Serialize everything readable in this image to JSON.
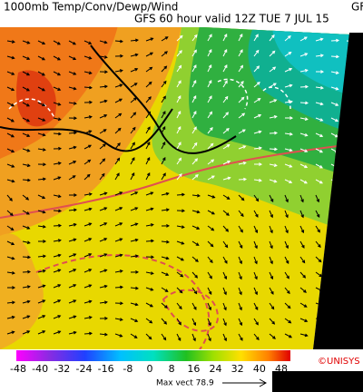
{
  "header": {
    "title": "1000mb Temp/Conv/Dewp/Wind",
    "subtitle": "GFS 60 hour valid 12Z TUE  7 JUL 15",
    "corner": "GF"
  },
  "legend": {
    "ticks": [
      -48,
      -40,
      -32,
      -24,
      -16,
      -8,
      0,
      8,
      16,
      24,
      32,
      40,
      48
    ],
    "credit": "©UNISYS"
  },
  "footer": {
    "max_vector": "Max vect 78.9"
  }
}
